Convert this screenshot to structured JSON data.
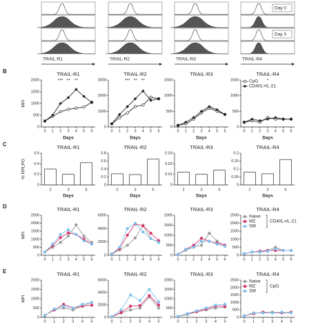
{
  "histograms": {
    "titles": [
      "TRAIL-R1",
      "TRAIL-R2",
      "TRAIL-R3",
      "TRAIL-R4"
    ],
    "day_labels": [
      "Day 0",
      "Day 3"
    ]
  },
  "chart_data": [
    {
      "type": "line",
      "panel": "B",
      "title": "TRAIL-R1",
      "ylabel": "MFI",
      "xlabel": "Days",
      "x": [
        0,
        1,
        2,
        3,
        4,
        5,
        6
      ],
      "xticks": [
        0,
        1,
        2,
        3,
        4,
        5,
        6
      ],
      "ylim": [
        0,
        2000
      ],
      "yticks": [
        0,
        500,
        1000,
        1500,
        2000
      ],
      "series": [
        {
          "name": "CpG",
          "color": "#222222",
          "marker": "open-circle",
          "values": [
            250,
            450,
            650,
            750,
            800,
            850,
            1050
          ]
        },
        {
          "name": "CD40L+IL-21",
          "color": "#222222",
          "marker": "diamond",
          "values": [
            250,
            500,
            1000,
            1250,
            1600,
            1300,
            1050
          ]
        }
      ],
      "annotations": [
        {
          "text": "***",
          "x": 2
        },
        {
          "text": "**",
          "x": 3
        },
        {
          "text": "**",
          "x": 4
        }
      ]
    },
    {
      "type": "line",
      "title": "TRAIL-R2",
      "xlabel": "Days",
      "x": [
        0,
        1,
        2,
        3,
        4,
        5,
        6
      ],
      "xticks": [
        0,
        1,
        2,
        3,
        4,
        5,
        6
      ],
      "ylim": [
        0,
        3000
      ],
      "yticks": [
        0,
        1000,
        2000,
        3000
      ],
      "series": [
        {
          "name": "CpG",
          "color": "#222222",
          "marker": "open-circle",
          "values": [
            200,
            600,
            900,
            1300,
            1400,
            1900,
            1800
          ]
        },
        {
          "name": "CD40L+IL-21",
          "color": "#222222",
          "marker": "diamond",
          "values": [
            200,
            800,
            1300,
            1800,
            2300,
            1700,
            1800
          ]
        }
      ],
      "annotations": [
        {
          "text": "***",
          "x": 2
        },
        {
          "text": "**",
          "x": 3
        },
        {
          "text": "**",
          "x": 4
        }
      ]
    },
    {
      "type": "line",
      "title": "TRAIL-R3",
      "xlabel": "Days",
      "x": [
        0,
        1,
        2,
        3,
        4,
        5,
        6
      ],
      "xticks": [
        0,
        1,
        2,
        3,
        4,
        5,
        6
      ],
      "ylim": [
        0,
        1500
      ],
      "yticks": [
        0,
        500,
        1000,
        1500
      ],
      "series": [
        {
          "name": "CpG",
          "color": "#222222",
          "marker": "open-circle",
          "values": [
            50,
            100,
            250,
            450,
            600,
            500,
            400
          ]
        },
        {
          "name": "CD40L+IL-21",
          "color": "#222222",
          "marker": "diamond",
          "values": [
            50,
            150,
            300,
            500,
            650,
            550,
            400
          ]
        }
      ]
    },
    {
      "type": "line",
      "title": "TRAIL-R4",
      "xlabel": "Days",
      "x": [
        0,
        1,
        2,
        3,
        4,
        5,
        6
      ],
      "xticks": [
        0,
        1,
        2,
        3,
        4,
        5,
        6
      ],
      "ylim": [
        0,
        1500
      ],
      "yticks": [
        0,
        500,
        1000,
        1500
      ],
      "legend": "inside",
      "series": [
        {
          "name": "CpG",
          "color": "#222222",
          "marker": "open-circle",
          "values": [
            150,
            200,
            150,
            300,
            250,
            250,
            250
          ]
        },
        {
          "name": "CD40L+IL-21",
          "color": "#222222",
          "marker": "diamond",
          "values": [
            150,
            250,
            200,
            250,
            300,
            250,
            250
          ]
        }
      ],
      "annotations": [
        {
          "text": "*",
          "x": 3
        }
      ]
    },
    {
      "type": "bar",
      "panel": "C",
      "title": "TRAIL-R1",
      "ylabel": "% RPLPO",
      "xlabel": "Days",
      "categories": [
        "2",
        "3",
        "6"
      ],
      "values": [
        0.3,
        0.2,
        0.42
      ],
      "color": "#ffffff",
      "ylim": [
        0,
        0.6
      ],
      "yticks": [
        0.0,
        0.2,
        0.4,
        0.6
      ]
    },
    {
      "type": "bar",
      "title": "TRAIL-R2",
      "xlabel": "Days",
      "categories": [
        "2",
        "3",
        "6"
      ],
      "values": [
        0.28,
        0.26,
        0.65
      ],
      "color": "#ffffff",
      "ylim": [
        0,
        0.8
      ],
      "yticks": [
        0.0,
        0.2,
        0.4,
        0.6,
        0.8
      ]
    },
    {
      "type": "bar",
      "title": "TRAIL-R3",
      "xlabel": "Days",
      "categories": [
        "2",
        "3",
        "6"
      ],
      "values": [
        0.012,
        0.01,
        0.014
      ],
      "color": "#ffffff",
      "ylim": [
        0,
        0.03
      ],
      "yticks": [
        0.0,
        0.01,
        0.02,
        0.03
      ]
    },
    {
      "type": "bar",
      "title": "TRAIL-R4",
      "xlabel": "Days",
      "categories": [
        "2",
        "3",
        "6"
      ],
      "values": [
        0.08,
        0.07,
        0.16
      ],
      "color": "#ffffff",
      "ylim": [
        0,
        0.2
      ],
      "yticks": [
        0.0,
        0.05,
        0.1,
        0.15,
        0.2
      ]
    },
    {
      "type": "line",
      "panel": "D",
      "title": "TRAIL-R1",
      "ylabel": "MFI",
      "x": [
        0,
        1,
        2,
        3,
        4,
        5,
        6
      ],
      "xticks": [
        0,
        1,
        2,
        3,
        4,
        5,
        6
      ],
      "ylim": [
        0,
        2500
      ],
      "yticks": [
        0,
        500,
        1000,
        1500,
        2000,
        2500
      ],
      "series": [
        {
          "name": "Naive",
          "color": "#9a9a9a",
          "marker": "circle",
          "values": [
            200,
            500,
            800,
            1200,
            1900,
            1200,
            800
          ]
        },
        {
          "name": "MZ",
          "color": "#d6336c",
          "marker": "circle",
          "values": [
            200,
            600,
            1100,
            1400,
            1300,
            1000,
            700
          ]
        },
        {
          "name": "SM",
          "color": "#7fc0ea",
          "marker": "circle",
          "values": [
            200,
            700,
            1300,
            1600,
            1300,
            900,
            700
          ]
        }
      ]
    },
    {
      "type": "line",
      "title": "TRAIL-R2",
      "x": [
        0,
        1,
        2,
        3,
        4,
        5,
        6
      ],
      "xticks": [
        0,
        1,
        2,
        3,
        4,
        5,
        6
      ],
      "ylim": [
        0,
        6000
      ],
      "yticks": [
        0,
        2000,
        4000,
        6000
      ],
      "series": [
        {
          "name": "Naive",
          "color": "#9a9a9a",
          "marker": "circle",
          "values": [
            200,
            800,
            1500,
            2600,
            4500,
            2500,
            2000
          ]
        },
        {
          "name": "MZ",
          "color": "#d6336c",
          "marker": "circle",
          "values": [
            200,
            1000,
            3000,
            4700,
            4400,
            3300,
            2200
          ]
        },
        {
          "name": "SM",
          "color": "#7fc0ea",
          "marker": "circle",
          "values": [
            200,
            1200,
            4000,
            4800,
            3500,
            2500,
            1900
          ]
        }
      ]
    },
    {
      "type": "line",
      "title": "TRAIL-R3",
      "x": [
        0,
        1,
        2,
        3,
        4,
        5,
        6
      ],
      "xticks": [
        0,
        1,
        2,
        3,
        4,
        5,
        6
      ],
      "ylim": [
        0,
        2000
      ],
      "yticks": [
        0,
        500,
        1000,
        1500,
        2000
      ],
      "series": [
        {
          "name": "Naive",
          "color": "#9a9a9a",
          "marker": "circle",
          "values": [
            50,
            250,
            400,
            500,
            1100,
            700,
            500
          ]
        },
        {
          "name": "MZ",
          "color": "#d6336c",
          "marker": "circle",
          "values": [
            50,
            300,
            500,
            850,
            700,
            600,
            500
          ]
        },
        {
          "name": "SM",
          "color": "#7fc0ea",
          "marker": "circle",
          "values": [
            50,
            300,
            400,
            700,
            700,
            550,
            450
          ]
        }
      ]
    },
    {
      "type": "line",
      "title": "TRAIL-R4",
      "x": [
        0,
        1,
        2,
        3,
        4,
        5,
        6
      ],
      "xticks": [
        0,
        1,
        2,
        3,
        4,
        5,
        6
      ],
      "ylim": [
        0,
        2500
      ],
      "yticks": [
        0,
        500,
        1000,
        1500,
        2000,
        2500
      ],
      "legend": "group",
      "legend_group": "CD40L+IL-21",
      "series": [
        {
          "name": "Naive",
          "color": "#9a9a9a",
          "marker": "circle",
          "values": [
            100,
            200,
            200,
            300,
            500,
            300,
            300
          ]
        },
        {
          "name": "MZ",
          "color": "#d6336c",
          "marker": "circle",
          "values": [
            100,
            200,
            250,
            300,
            300,
            300,
            300
          ]
        },
        {
          "name": "SM",
          "color": "#7fc0ea",
          "marker": "circle",
          "values": [
            100,
            200,
            200,
            250,
            400,
            300,
            300
          ]
        }
      ]
    },
    {
      "type": "line",
      "panel": "E",
      "title": "TRAIL-R1",
      "ylabel": "MFI",
      "x": [
        0,
        1,
        2,
        3,
        4,
        5
      ],
      "xticks": [
        0,
        1,
        2,
        3,
        4,
        5
      ],
      "ylim": [
        0,
        2000
      ],
      "yticks": [
        0,
        500,
        1000,
        1500,
        2000
      ],
      "series": [
        {
          "name": "Naive",
          "color": "#9a9a9a",
          "marker": "circle",
          "values": [
            100,
            400,
            500,
            400,
            600,
            800
          ]
        },
        {
          "name": "MZ",
          "color": "#d6336c",
          "marker": "circle",
          "values": [
            100,
            400,
            700,
            500,
            600,
            650
          ]
        },
        {
          "name": "SM",
          "color": "#7fc0ea",
          "marker": "circle",
          "values": [
            100,
            450,
            600,
            500,
            700,
            800
          ]
        }
      ]
    },
    {
      "type": "line",
      "title": "TRAIL-R2",
      "x": [
        0,
        1,
        2,
        3,
        4,
        5
      ],
      "xticks": [
        0,
        1,
        2,
        3,
        4,
        5
      ],
      "ylim": [
        0,
        6000
      ],
      "yticks": [
        0,
        2000,
        4000,
        6000
      ],
      "series": [
        {
          "name": "Naive",
          "color": "#9a9a9a",
          "marker": "circle",
          "values": [
            100,
            700,
            1200,
            1500,
            3300,
            1500
          ]
        },
        {
          "name": "MZ",
          "color": "#d6336c",
          "marker": "circle",
          "values": [
            100,
            800,
            1800,
            1900,
            3500,
            2000
          ]
        },
        {
          "name": "SM",
          "color": "#7fc0ea",
          "marker": "circle",
          "values": [
            100,
            1200,
            3600,
            2700,
            4500,
            2500
          ]
        }
      ]
    },
    {
      "type": "line",
      "title": "TRAIL-R3",
      "x": [
        0,
        1,
        2,
        3,
        4,
        5
      ],
      "xticks": [
        0,
        1,
        2,
        3,
        4,
        5
      ],
      "ylim": [
        0,
        2000
      ],
      "yticks": [
        0,
        500,
        1000,
        1500,
        2000
      ],
      "series": [
        {
          "name": "Naive",
          "color": "#9a9a9a",
          "marker": "circle",
          "values": [
            50,
            150,
            300,
            400,
            500,
            550
          ]
        },
        {
          "name": "MZ",
          "color": "#d6336c",
          "marker": "circle",
          "values": [
            50,
            200,
            300,
            450,
            600,
            600
          ]
        },
        {
          "name": "SM",
          "color": "#7fc0ea",
          "marker": "circle",
          "values": [
            50,
            200,
            350,
            500,
            650,
            700
          ]
        }
      ]
    },
    {
      "type": "line",
      "title": "TRAIL-R4",
      "x": [
        0,
        1,
        2,
        3,
        4,
        5
      ],
      "xticks": [
        0,
        1,
        2,
        3,
        4,
        5
      ],
      "ylim": [
        0,
        2500
      ],
      "yticks": [
        0,
        500,
        1000,
        1500,
        2000,
        2500
      ],
      "legend": "group",
      "legend_group": "CpG",
      "series": [
        {
          "name": "Naive",
          "color": "#9a9a9a",
          "marker": "circle",
          "values": [
            100,
            300,
            300,
            350,
            300,
            300
          ]
        },
        {
          "name": "MZ",
          "color": "#d6336c",
          "marker": "circle",
          "values": [
            100,
            250,
            350,
            300,
            300,
            350
          ]
        },
        {
          "name": "SM",
          "color": "#7fc0ea",
          "marker": "circle",
          "values": [
            100,
            300,
            300,
            300,
            350,
            300
          ]
        }
      ]
    }
  ]
}
